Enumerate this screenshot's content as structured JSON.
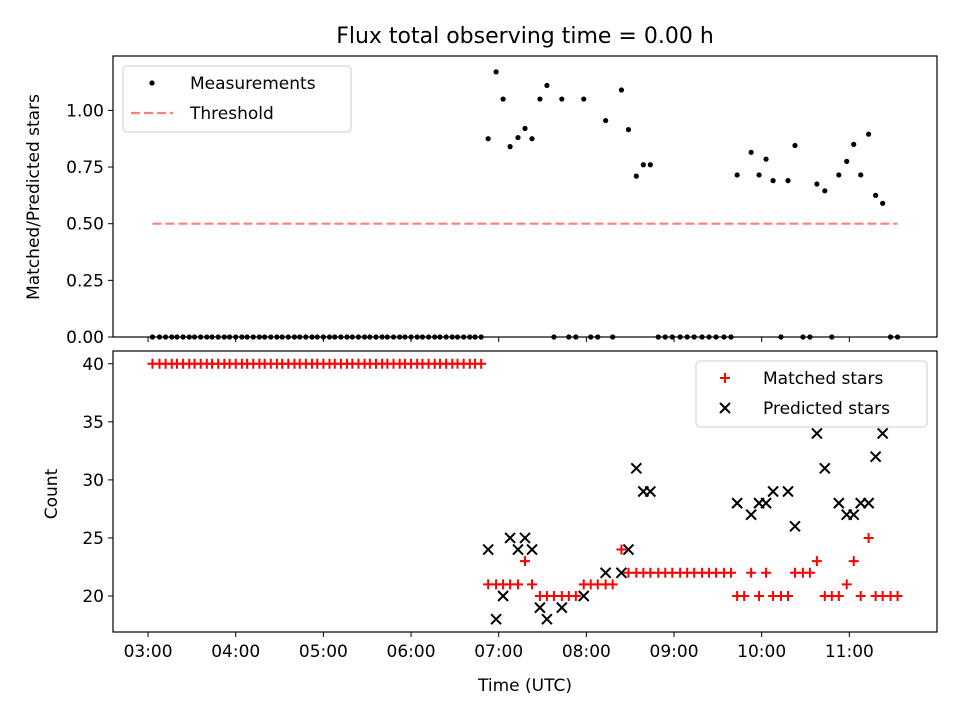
{
  "chart_data": [
    {
      "type": "scatter",
      "title": "Flux total observing time = 0.00 h",
      "xlabel": "",
      "ylabel": "Matched/Predicted stars",
      "xlim": [
        2.6,
        12.0
      ],
      "ylim": [
        0,
        1.24
      ],
      "x_ticks": [
        3,
        4,
        5,
        6,
        7,
        8,
        9,
        10,
        11
      ],
      "x_tick_labels": [],
      "y_ticks": [
        0.0,
        0.25,
        0.5,
        0.75,
        1.0
      ],
      "y_tick_labels": [
        "0.00",
        "0.25",
        "0.50",
        "0.75",
        "1.00"
      ],
      "legend_position": "upper-left",
      "series": [
        {
          "name": "Measurements",
          "kind": "points",
          "color": "#000000",
          "points": [
            [
              3.05,
              0
            ],
            [
              3.13,
              0
            ],
            [
              3.2,
              0
            ],
            [
              3.27,
              0
            ],
            [
              3.33,
              0
            ],
            [
              3.4,
              0
            ],
            [
              3.47,
              0
            ],
            [
              3.53,
              0
            ],
            [
              3.6,
              0
            ],
            [
              3.67,
              0
            ],
            [
              3.73,
              0
            ],
            [
              3.8,
              0
            ],
            [
              3.87,
              0
            ],
            [
              3.93,
              0
            ],
            [
              4.0,
              0
            ],
            [
              4.07,
              0
            ],
            [
              4.13,
              0
            ],
            [
              4.2,
              0
            ],
            [
              4.27,
              0
            ],
            [
              4.33,
              0
            ],
            [
              4.4,
              0
            ],
            [
              4.47,
              0
            ],
            [
              4.53,
              0
            ],
            [
              4.6,
              0
            ],
            [
              4.67,
              0
            ],
            [
              4.73,
              0
            ],
            [
              4.8,
              0
            ],
            [
              4.87,
              0
            ],
            [
              4.93,
              0
            ],
            [
              5.0,
              0
            ],
            [
              5.07,
              0
            ],
            [
              5.13,
              0
            ],
            [
              5.2,
              0
            ],
            [
              5.27,
              0
            ],
            [
              5.33,
              0
            ],
            [
              5.4,
              0
            ],
            [
              5.47,
              0
            ],
            [
              5.53,
              0
            ],
            [
              5.6,
              0
            ],
            [
              5.67,
              0
            ],
            [
              5.73,
              0
            ],
            [
              5.8,
              0
            ],
            [
              5.87,
              0
            ],
            [
              5.93,
              0
            ],
            [
              6.0,
              0
            ],
            [
              6.07,
              0
            ],
            [
              6.13,
              0
            ],
            [
              6.2,
              0
            ],
            [
              6.27,
              0
            ],
            [
              6.33,
              0
            ],
            [
              6.4,
              0
            ],
            [
              6.47,
              0
            ],
            [
              6.53,
              0
            ],
            [
              6.6,
              0
            ],
            [
              6.67,
              0
            ],
            [
              6.73,
              0
            ],
            [
              6.8,
              0
            ],
            [
              6.88,
              0.875
            ],
            [
              6.97,
              1.17
            ],
            [
              7.05,
              1.05
            ],
            [
              7.13,
              0.84
            ],
            [
              7.22,
              0.88
            ],
            [
              7.3,
              0.92
            ],
            [
              7.38,
              0.875
            ],
            [
              7.47,
              1.05
            ],
            [
              7.55,
              1.11
            ],
            [
              7.72,
              1.05
            ],
            [
              7.97,
              1.05
            ],
            [
              8.22,
              0.955
            ],
            [
              8.4,
              1.09
            ],
            [
              8.48,
              0.915
            ],
            [
              8.57,
              0.71
            ],
            [
              8.65,
              0.76
            ],
            [
              8.73,
              0.76
            ],
            [
              9.72,
              0.715
            ],
            [
              9.88,
              0.815
            ],
            [
              9.97,
              0.715
            ],
            [
              10.05,
              0.785
            ],
            [
              10.13,
              0.69
            ],
            [
              10.3,
              0.69
            ],
            [
              10.38,
              0.845
            ],
            [
              10.63,
              0.675
            ],
            [
              10.72,
              0.645
            ],
            [
              10.88,
              0.715
            ],
            [
              10.97,
              0.775
            ],
            [
              11.05,
              0.85
            ],
            [
              11.13,
              0.715
            ],
            [
              11.22,
              0.895
            ],
            [
              11.3,
              0.625
            ],
            [
              11.38,
              0.59
            ],
            [
              7.63,
              0
            ],
            [
              7.8,
              0
            ],
            [
              7.88,
              0
            ],
            [
              8.05,
              0
            ],
            [
              8.13,
              0
            ],
            [
              8.3,
              0
            ],
            [
              8.82,
              0
            ],
            [
              8.9,
              0
            ],
            [
              8.98,
              0
            ],
            [
              9.07,
              0
            ],
            [
              9.15,
              0
            ],
            [
              9.23,
              0
            ],
            [
              9.32,
              0
            ],
            [
              9.4,
              0
            ],
            [
              9.48,
              0
            ],
            [
              9.57,
              0
            ],
            [
              9.65,
              0
            ],
            [
              10.22,
              0
            ],
            [
              10.47,
              0
            ],
            [
              10.55,
              0
            ],
            [
              10.8,
              0
            ],
            [
              11.47,
              0
            ],
            [
              11.55,
              0
            ]
          ]
        },
        {
          "name": "Threshold",
          "kind": "dashed-line",
          "color": "#ff7f7f",
          "points": [
            [
              3.05,
              0.5
            ],
            [
              11.55,
              0.5
            ]
          ]
        }
      ]
    },
    {
      "type": "scatter",
      "title": "",
      "xlabel": "Time (UTC)",
      "ylabel": "Count",
      "xlim": [
        2.6,
        12.0
      ],
      "ylim": [
        16.9,
        41.1
      ],
      "x_ticks": [
        3,
        4,
        5,
        6,
        7,
        8,
        9,
        10,
        11
      ],
      "x_tick_labels": [
        "03:00",
        "04:00",
        "05:00",
        "06:00",
        "07:00",
        "08:00",
        "09:00",
        "10:00",
        "11:00"
      ],
      "y_ticks": [
        20,
        25,
        30,
        35,
        40
      ],
      "y_tick_labels": [
        "20",
        "25",
        "30",
        "35",
        "40"
      ],
      "legend_position": "upper-right",
      "series": [
        {
          "name": "Matched stars",
          "kind": "plus",
          "color": "#ff0000",
          "points": [
            [
              3.05,
              40
            ],
            [
              3.13,
              40
            ],
            [
              3.2,
              40
            ],
            [
              3.27,
              40
            ],
            [
              3.33,
              40
            ],
            [
              3.4,
              40
            ],
            [
              3.47,
              40
            ],
            [
              3.53,
              40
            ],
            [
              3.6,
              40
            ],
            [
              3.67,
              40
            ],
            [
              3.73,
              40
            ],
            [
              3.8,
              40
            ],
            [
              3.87,
              40
            ],
            [
              3.93,
              40
            ],
            [
              4.0,
              40
            ],
            [
              4.07,
              40
            ],
            [
              4.13,
              40
            ],
            [
              4.2,
              40
            ],
            [
              4.27,
              40
            ],
            [
              4.33,
              40
            ],
            [
              4.4,
              40
            ],
            [
              4.47,
              40
            ],
            [
              4.53,
              40
            ],
            [
              4.6,
              40
            ],
            [
              4.67,
              40
            ],
            [
              4.73,
              40
            ],
            [
              4.8,
              40
            ],
            [
              4.87,
              40
            ],
            [
              4.93,
              40
            ],
            [
              5.0,
              40
            ],
            [
              5.07,
              40
            ],
            [
              5.13,
              40
            ],
            [
              5.2,
              40
            ],
            [
              5.27,
              40
            ],
            [
              5.33,
              40
            ],
            [
              5.4,
              40
            ],
            [
              5.47,
              40
            ],
            [
              5.53,
              40
            ],
            [
              5.6,
              40
            ],
            [
              5.67,
              40
            ],
            [
              5.73,
              40
            ],
            [
              5.8,
              40
            ],
            [
              5.87,
              40
            ],
            [
              5.93,
              40
            ],
            [
              6.0,
              40
            ],
            [
              6.07,
              40
            ],
            [
              6.13,
              40
            ],
            [
              6.2,
              40
            ],
            [
              6.27,
              40
            ],
            [
              6.33,
              40
            ],
            [
              6.4,
              40
            ],
            [
              6.47,
              40
            ],
            [
              6.53,
              40
            ],
            [
              6.6,
              40
            ],
            [
              6.67,
              40
            ],
            [
              6.73,
              40
            ],
            [
              6.8,
              40
            ],
            [
              6.88,
              21
            ],
            [
              6.97,
              21
            ],
            [
              7.05,
              21
            ],
            [
              7.13,
              21
            ],
            [
              7.22,
              21
            ],
            [
              7.3,
              23
            ],
            [
              7.38,
              21
            ],
            [
              7.47,
              20
            ],
            [
              7.55,
              20
            ],
            [
              7.63,
              20
            ],
            [
              7.72,
              20
            ],
            [
              7.8,
              20
            ],
            [
              7.88,
              20
            ],
            [
              7.97,
              21
            ],
            [
              8.05,
              21
            ],
            [
              8.13,
              21
            ],
            [
              8.22,
              21
            ],
            [
              8.3,
              21
            ],
            [
              8.4,
              24
            ],
            [
              8.48,
              22
            ],
            [
              8.57,
              22
            ],
            [
              8.65,
              22
            ],
            [
              8.73,
              22
            ],
            [
              8.82,
              22
            ],
            [
              8.9,
              22
            ],
            [
              8.98,
              22
            ],
            [
              9.07,
              22
            ],
            [
              9.15,
              22
            ],
            [
              9.23,
              22
            ],
            [
              9.32,
              22
            ],
            [
              9.4,
              22
            ],
            [
              9.48,
              22
            ],
            [
              9.57,
              22
            ],
            [
              9.65,
              22
            ],
            [
              9.72,
              20
            ],
            [
              9.8,
              20
            ],
            [
              9.88,
              22
            ],
            [
              9.97,
              20
            ],
            [
              10.05,
              22
            ],
            [
              10.13,
              20
            ],
            [
              10.22,
              20
            ],
            [
              10.3,
              20
            ],
            [
              10.38,
              22
            ],
            [
              10.47,
              22
            ],
            [
              10.55,
              22
            ],
            [
              10.63,
              23
            ],
            [
              10.72,
              20
            ],
            [
              10.8,
              20
            ],
            [
              10.88,
              20
            ],
            [
              10.97,
              21
            ],
            [
              11.05,
              23
            ],
            [
              11.13,
              20
            ],
            [
              11.22,
              25
            ],
            [
              11.3,
              20
            ],
            [
              11.38,
              20
            ],
            [
              11.47,
              20
            ],
            [
              11.55,
              20
            ]
          ]
        },
        {
          "name": "Predicted stars",
          "kind": "x",
          "color": "#000000",
          "points": [
            [
              6.88,
              24
            ],
            [
              6.97,
              18
            ],
            [
              7.05,
              20
            ],
            [
              7.13,
              25
            ],
            [
              7.22,
              24
            ],
            [
              7.3,
              25
            ],
            [
              7.38,
              24
            ],
            [
              7.47,
              19
            ],
            [
              7.55,
              18
            ],
            [
              7.72,
              19
            ],
            [
              7.97,
              20
            ],
            [
              8.22,
              22
            ],
            [
              8.4,
              22
            ],
            [
              8.48,
              24
            ],
            [
              8.57,
              31
            ],
            [
              8.65,
              29
            ],
            [
              8.73,
              29
            ],
            [
              9.72,
              28
            ],
            [
              9.88,
              27
            ],
            [
              9.97,
              28
            ],
            [
              10.05,
              28
            ],
            [
              10.13,
              29
            ],
            [
              10.3,
              29
            ],
            [
              10.38,
              26
            ],
            [
              10.63,
              34
            ],
            [
              10.72,
              31
            ],
            [
              10.88,
              28
            ],
            [
              10.97,
              27
            ],
            [
              11.05,
              27
            ],
            [
              11.13,
              28
            ],
            [
              11.22,
              28
            ],
            [
              11.3,
              32
            ],
            [
              11.38,
              34
            ]
          ]
        }
      ]
    }
  ]
}
